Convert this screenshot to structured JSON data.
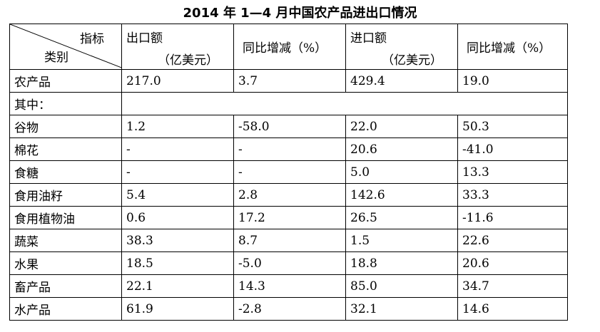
{
  "title": "2014 年 1—4 月中国农产品进出口情况",
  "header": {
    "corner_top": "指标",
    "corner_bottom": "类别",
    "export_l1": "出口额",
    "export_l2": "（亿美元）",
    "export_yoy": "同比增减（%）",
    "import_l1": "进口额",
    "import_l2": "（亿美元）",
    "import_yoy": "同比增减（%）"
  },
  "rows": [
    {
      "category": "农产品",
      "export": "217.0",
      "export_yoy": "3.7",
      "import": "429.4",
      "import_yoy": "19.0"
    },
    {
      "category": "谷物",
      "export": "1.2",
      "export_yoy": "-58.0",
      "import": "22.0",
      "import_yoy": "50.3"
    },
    {
      "category": "棉花",
      "export": "-",
      "export_yoy": "-",
      "import": "20.6",
      "import_yoy": "-41.0"
    },
    {
      "category": "食糖",
      "export": "-",
      "export_yoy": "-",
      "import": "5.0",
      "import_yoy": "13.3"
    },
    {
      "category": "食用油籽",
      "export": "5.4",
      "export_yoy": "2.8",
      "import": "142.6",
      "import_yoy": "33.3"
    },
    {
      "category": "食用植物油",
      "export": "0.6",
      "export_yoy": "17.2",
      "import": "26.5",
      "import_yoy": "-11.6"
    },
    {
      "category": "蔬菜",
      "export": "38.3",
      "export_yoy": "8.7",
      "import": "1.5",
      "import_yoy": "22.6"
    },
    {
      "category": "水果",
      "export": "18.5",
      "export_yoy": "-5.0",
      "import": "18.8",
      "import_yoy": "20.6"
    },
    {
      "category": "畜产品",
      "export": "22.1",
      "export_yoy": "14.3",
      "import": "85.0",
      "import_yoy": "34.7"
    },
    {
      "category": "水产品",
      "export": "61.9",
      "export_yoy": "-2.8",
      "import": "32.1",
      "import_yoy": "14.6"
    }
  ],
  "subheader_label": "其中："
}
